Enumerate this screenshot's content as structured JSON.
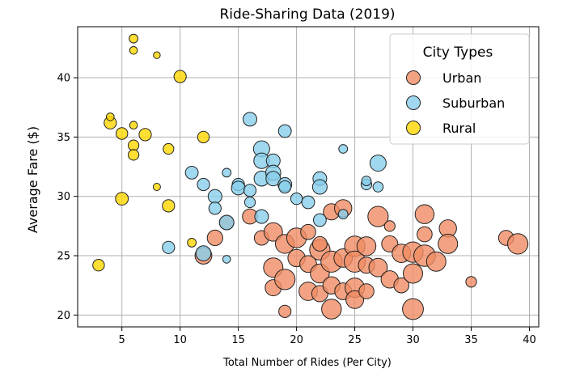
{
  "chart_data": {
    "type": "scatter",
    "title": "Ride-Sharing Data (2019)",
    "xlabel": "Total Number of Rides (Per City)",
    "ylabel": "Average Fare ($)",
    "xlim": [
      1.2,
      40.8
    ],
    "ylim": [
      19.0,
      44.3
    ],
    "xticks": [
      5,
      10,
      15,
      20,
      25,
      30,
      35,
      40
    ],
    "yticks": [
      20,
      25,
      30,
      35,
      40
    ],
    "grid": true,
    "legend": {
      "title": "City Types",
      "placement": "top-right"
    },
    "size_encoding": "marker area proportional to driver count",
    "series": [
      {
        "name": "Urban",
        "color": "#F08C64",
        "points": [
          [
            12,
            25.0,
            38
          ],
          [
            13,
            26.5,
            32
          ],
          [
            14,
            27.8,
            25
          ],
          [
            16,
            28.3,
            30
          ],
          [
            17,
            26.5,
            28
          ],
          [
            18,
            27.0,
            45
          ],
          [
            18,
            24.0,
            50
          ],
          [
            18,
            22.3,
            35
          ],
          [
            19,
            23.0,
            55
          ],
          [
            19,
            26.0,
            48
          ],
          [
            19,
            20.3,
            20
          ],
          [
            20,
            24.8,
            40
          ],
          [
            20,
            26.5,
            52
          ],
          [
            21,
            27.0,
            30
          ],
          [
            21,
            24.3,
            38
          ],
          [
            21,
            22.0,
            45
          ],
          [
            22,
            25.5,
            55
          ],
          [
            22,
            23.5,
            48
          ],
          [
            22,
            21.8,
            35
          ],
          [
            22,
            26.0,
            28
          ],
          [
            23,
            24.5,
            60
          ],
          [
            23,
            28.7,
            35
          ],
          [
            23,
            22.5,
            40
          ],
          [
            23,
            20.5,
            52
          ],
          [
            24,
            29.0,
            40
          ],
          [
            24,
            24.8,
            45
          ],
          [
            24,
            22.0,
            38
          ],
          [
            25,
            25.8,
            55
          ],
          [
            25,
            24.5,
            60
          ],
          [
            25,
            22.3,
            50
          ],
          [
            25,
            21.3,
            42
          ],
          [
            26,
            25.8,
            48
          ],
          [
            26,
            24.2,
            35
          ],
          [
            26,
            22.0,
            30
          ],
          [
            27,
            28.3,
            55
          ],
          [
            27,
            24.0,
            45
          ],
          [
            28,
            27.5,
            15
          ],
          [
            28,
            26.0,
            35
          ],
          [
            28,
            23.0,
            40
          ],
          [
            29,
            22.5,
            30
          ],
          [
            29,
            25.2,
            45
          ],
          [
            30,
            20.5,
            58
          ],
          [
            30,
            23.5,
            50
          ],
          [
            30,
            25.3,
            55
          ],
          [
            31,
            28.5,
            48
          ],
          [
            31,
            25.0,
            62
          ],
          [
            31,
            26.8,
            30
          ],
          [
            32,
            24.5,
            50
          ],
          [
            33,
            27.3,
            40
          ],
          [
            33,
            26.0,
            50
          ],
          [
            35,
            22.8,
            15
          ],
          [
            38,
            26.5,
            30
          ],
          [
            39,
            26.0,
            55
          ]
        ]
      },
      {
        "name": "Suburban",
        "color": "#87CEEB",
        "points": [
          [
            9,
            25.7,
            20
          ],
          [
            11,
            32.0,
            22
          ],
          [
            12,
            31.0,
            20
          ],
          [
            12,
            25.2,
            30
          ],
          [
            13,
            30.0,
            25
          ],
          [
            13,
            29.0,
            20
          ],
          [
            14,
            32.0,
            10
          ],
          [
            14,
            27.8,
            28
          ],
          [
            14,
            24.7,
            8
          ],
          [
            15,
            31.0,
            20
          ],
          [
            15,
            30.7,
            25
          ],
          [
            16,
            36.5,
            25
          ],
          [
            16,
            30.5,
            20
          ],
          [
            16,
            29.5,
            15
          ],
          [
            17,
            34.0,
            35
          ],
          [
            17,
            33.0,
            32
          ],
          [
            17,
            31.5,
            30
          ],
          [
            17,
            28.3,
            25
          ],
          [
            18,
            33.0,
            25
          ],
          [
            18,
            32.0,
            30
          ],
          [
            18,
            31.5,
            28
          ],
          [
            19,
            35.5,
            22
          ],
          [
            19,
            31.0,
            25
          ],
          [
            19,
            30.8,
            20
          ],
          [
            20,
            29.8,
            18
          ],
          [
            21,
            29.5,
            22
          ],
          [
            22,
            31.5,
            25
          ],
          [
            22,
            30.8,
            28
          ],
          [
            22,
            28.0,
            22
          ],
          [
            24,
            34.0,
            10
          ],
          [
            24,
            28.5,
            12
          ],
          [
            26,
            31.0,
            15
          ],
          [
            26,
            31.3,
            12
          ],
          [
            27,
            32.8,
            35
          ],
          [
            27,
            30.8,
            14
          ]
        ]
      },
      {
        "name": "Rural",
        "color": "#FFD700",
        "points": [
          [
            3,
            24.2,
            18
          ],
          [
            4,
            36.2,
            20
          ],
          [
            4,
            36.7,
            8
          ],
          [
            5,
            35.3,
            18
          ],
          [
            5,
            29.8,
            22
          ],
          [
            6,
            43.3,
            10
          ],
          [
            6,
            42.3,
            8
          ],
          [
            6,
            36.0,
            8
          ],
          [
            6,
            34.3,
            15
          ],
          [
            6,
            33.5,
            15
          ],
          [
            7,
            35.2,
            20
          ],
          [
            8,
            41.9,
            6
          ],
          [
            8,
            30.8,
            7
          ],
          [
            9,
            34.0,
            15
          ],
          [
            9,
            29.2,
            20
          ],
          [
            10,
            40.1,
            20
          ],
          [
            11,
            26.1,
            10
          ],
          [
            12,
            35.0,
            18
          ]
        ]
      }
    ]
  }
}
